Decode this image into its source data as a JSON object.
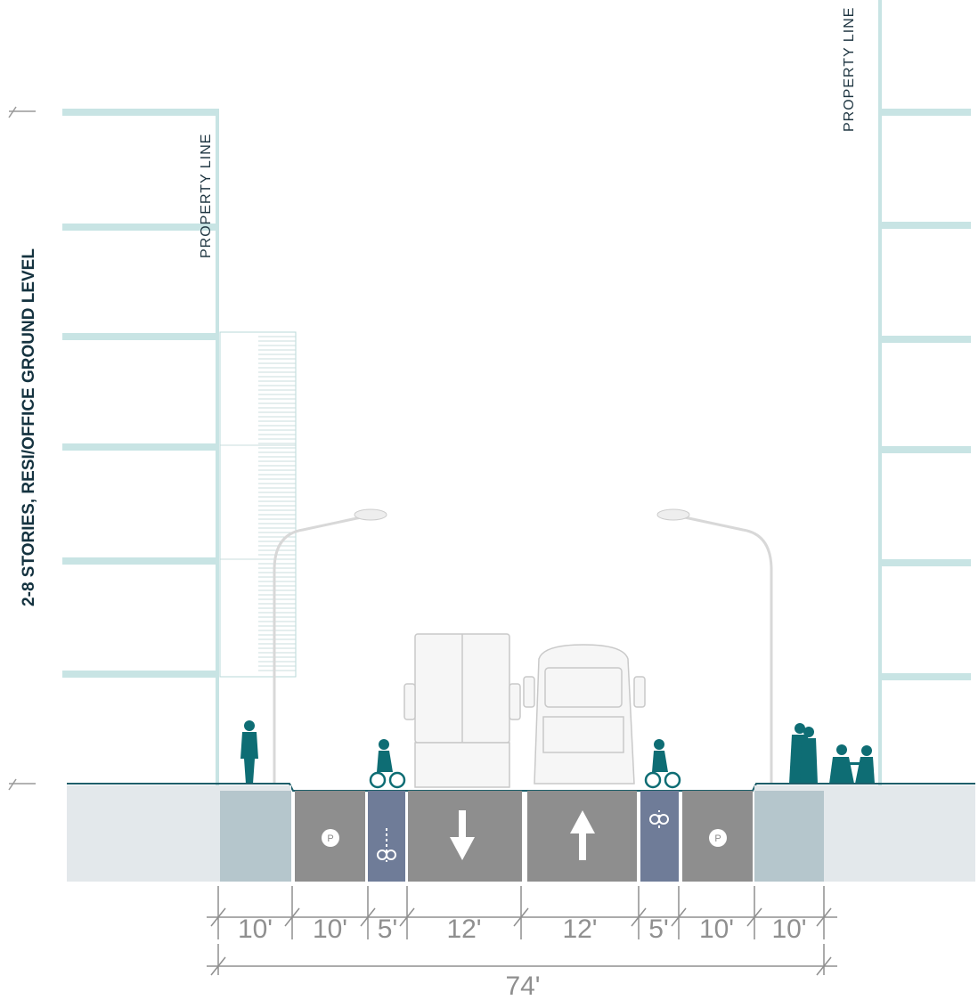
{
  "building_label": "2-8 STORIES, RESI/OFFICE GROUND LEVEL",
  "property_lines": [
    "PROPERTY  LINE",
    "PROPERTY  LINE"
  ],
  "parking_signs": [
    "P",
    "P"
  ],
  "dimensions": [
    "10'",
    "10'",
    "5'",
    "12'",
    "12'",
    "5'",
    "10'",
    "10'"
  ],
  "total_width": "74'"
}
